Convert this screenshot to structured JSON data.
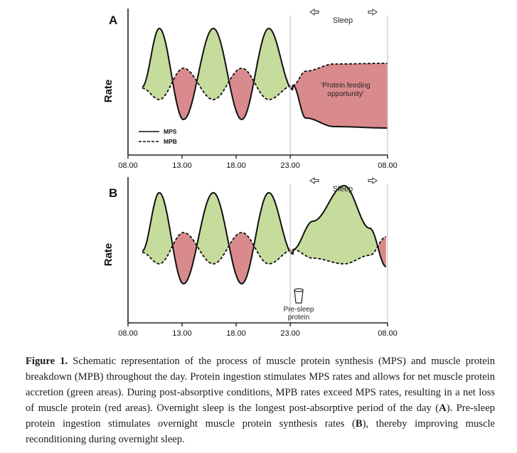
{
  "chart_data": [
    {
      "type": "line",
      "panel_letter": "A",
      "ylabel": "Rate",
      "x_tick_labels": [
        "08.00",
        "13.00",
        "18.00",
        "23.00",
        "08.00"
      ],
      "x_ticks_hours": [
        8,
        13,
        18,
        23,
        32
      ],
      "xlim": [
        8,
        32
      ],
      "sleep_start_hour": 23,
      "sleep_end_hour": 32,
      "sleep_label": "Sleep",
      "annotations": [
        "'Protein feeding opportunity'"
      ],
      "legend": [
        {
          "label": "MPS",
          "style": "solid"
        },
        {
          "label": "MPB",
          "style": "dashed"
        }
      ],
      "series": [
        {
          "name": "MPS",
          "style": "solid",
          "description_points": [
            [
              9.5,
              0
            ],
            [
              11,
              1
            ],
            [
              13,
              -0.6
            ],
            [
              15,
              1
            ],
            [
              18,
              -0.6
            ],
            [
              20.5,
              1
            ],
            [
              23,
              0
            ],
            [
              25,
              0.45
            ],
            [
              32,
              0.55
            ]
          ]
        },
        {
          "name": "MPB",
          "style": "dashed",
          "description_points": [
            [
              9.5,
              0
            ],
            [
              11,
              -0.2
            ],
            [
              13,
              0.3
            ],
            [
              15,
              -0.2
            ],
            [
              18,
              0.3
            ],
            [
              20.5,
              -0.2
            ],
            [
              23,
              0
            ],
            [
              25,
              -0.55
            ],
            [
              32,
              -0.6
            ]
          ]
        }
      ],
      "areas": {
        "green": "MPS above MPB",
        "red": "MPB above MPS"
      }
    },
    {
      "type": "line",
      "panel_letter": "B",
      "ylabel": "Rate",
      "x_tick_labels": [
        "08.00",
        "13.00",
        "18.00",
        "23.00",
        "08.00"
      ],
      "x_ticks_hours": [
        8,
        13,
        18,
        23,
        32
      ],
      "xlim": [
        8,
        32
      ],
      "sleep_start_hour": 23,
      "sleep_end_hour": 32,
      "sleep_label": "Sleep",
      "annotations": [
        "Pre-sleep protein"
      ],
      "series": [
        {
          "name": "MPS",
          "style": "solid"
        },
        {
          "name": "MPB",
          "style": "dashed"
        }
      ],
      "areas": {
        "green": "MPS above MPB",
        "red": "MPB above MPS"
      }
    }
  ],
  "colors": {
    "green_fill": "#c6dc9d",
    "red_fill": "#d98a8d",
    "line": "#111111"
  },
  "caption": {
    "label": "Figure 1.",
    "text_1": " Schematic representation of the process of muscle protein synthesis (MPS) and muscle protein breakdown (MPB) throughout the day. Protein ingestion stimulates MPS rates and allows for net muscle protein accretion (green areas). During post-absorptive conditions, MPB rates exceed MPS rates, resulting in a net loss of muscle protein (red areas). Overnight sleep is the longest post-absorptive period of the day (",
    "bold_A": "A",
    "text_2": "). Pre-sleep protein ingestion stimulates overnight muscle protein synthesis rates (",
    "bold_B": "B",
    "text_3": "), thereby improving muscle reconditioning during overnight sleep."
  }
}
